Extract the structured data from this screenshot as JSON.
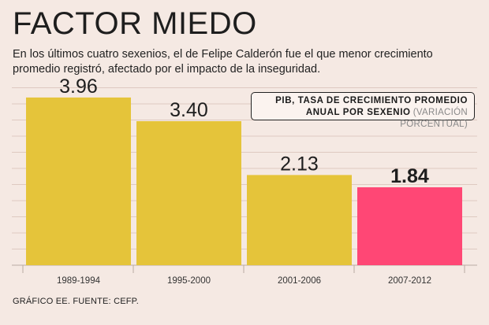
{
  "header": {
    "title": "FACTOR MIEDO",
    "subtitle": "En los últimos cuatro sexenios, el de Felipe Calderón fue el que menor crecimiento promedio registró, afectado por el impacto de la inseguridad."
  },
  "legend": {
    "line1": "PIB, TASA DE CRECIMIENTO PROMEDIO",
    "line2_bold": "ANUAL POR SEXENIO",
    "line2_muted": "(VARIACIÓN PORCENTUAL)"
  },
  "footer": {
    "source": "GRÁFICO EE. FUENTE: CEFP."
  },
  "colors": {
    "background": "#f5e9e3",
    "bar": "#e5c43a",
    "highlight": "#ff4775",
    "grid": "#dec9c1"
  },
  "chart_data": {
    "type": "bar",
    "categories": [
      "1989-1994",
      "1995-2000",
      "2001-2006",
      "2007-2012"
    ],
    "values": [
      3.96,
      3.4,
      2.13,
      1.84
    ],
    "value_labels": [
      "3.96",
      "3.40",
      "2.13",
      "1.84"
    ],
    "highlight_index": 3,
    "ylim": [
      0,
      4.2
    ],
    "grid": true,
    "xlabel": "",
    "ylabel": ""
  }
}
